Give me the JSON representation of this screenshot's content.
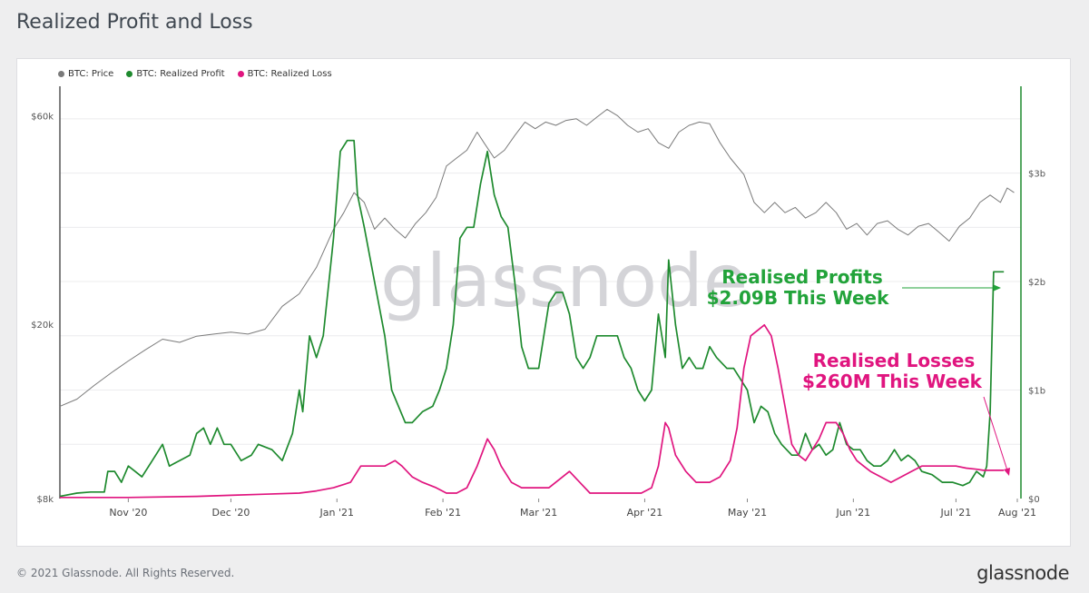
{
  "page": {
    "title": "Realized Profit and Loss",
    "footer": "© 2021 Glassnode. All Rights Reserved.",
    "logo": "glassnode",
    "watermark": "glassnode"
  },
  "colors": {
    "price": "#7a7a7a",
    "profit": "#1e8a2e",
    "loss": "#e0157f",
    "profit_annotation": "#22a33a",
    "loss_annotation": "#e0157f"
  },
  "legend": [
    {
      "label": "BTC: Price",
      "color": "#7a7a7a"
    },
    {
      "label": "BTC: Realized Profit",
      "color": "#1e8a2e"
    },
    {
      "label": "BTC: Realized Loss",
      "color": "#e0157f"
    }
  ],
  "annotations": {
    "profit": {
      "line1": "Realised Profits",
      "line2": "$2.09B This Week"
    },
    "loss": {
      "line1": "Realised Losses",
      "line2": "$260M This Week"
    }
  },
  "chart_data": {
    "type": "line",
    "title": "Realized Profit and Loss",
    "x_range_days": [
      0,
      281
    ],
    "x_ticks": [
      {
        "day": 20,
        "label": "Nov '20"
      },
      {
        "day": 50,
        "label": "Dec '20"
      },
      {
        "day": 81,
        "label": "Jan '21"
      },
      {
        "day": 112,
        "label": "Feb '21"
      },
      {
        "day": 140,
        "label": "Mar '21"
      },
      {
        "day": 171,
        "label": "Apr '21"
      },
      {
        "day": 201,
        "label": "May '21"
      },
      {
        "day": 232,
        "label": "Jun '21"
      },
      {
        "day": 262,
        "label": "Jul '21"
      },
      {
        "day": 293,
        "label": "Aug '21"
      }
    ],
    "y_left": {
      "scale": "log",
      "range": [
        8000,
        70000
      ],
      "ticks": [
        {
          "value": 8000,
          "label": "$8k"
        },
        {
          "value": 20000,
          "label": "$20k"
        },
        {
          "value": 60000,
          "label": "$60k"
        }
      ]
    },
    "y_right": {
      "scale": "linear",
      "range": [
        0,
        3.8
      ],
      "unit": "billion USD",
      "ticks": [
        {
          "value": 0,
          "label": "$0"
        },
        {
          "value": 1,
          "label": "$1b"
        },
        {
          "value": 2,
          "label": "$2b"
        },
        {
          "value": 3,
          "label": "$3b"
        }
      ]
    },
    "series": [
      {
        "name": "BTC: Price",
        "axis": "left",
        "points": [
          [
            0,
            13000
          ],
          [
            5,
            13500
          ],
          [
            10,
            14500
          ],
          [
            15,
            15500
          ],
          [
            20,
            16500
          ],
          [
            25,
            17500
          ],
          [
            30,
            18500
          ],
          [
            35,
            18200
          ],
          [
            40,
            18800
          ],
          [
            45,
            19000
          ],
          [
            50,
            19200
          ],
          [
            55,
            19000
          ],
          [
            60,
            19500
          ],
          [
            65,
            22000
          ],
          [
            70,
            23500
          ],
          [
            75,
            27000
          ],
          [
            80,
            33000
          ],
          [
            83,
            36000
          ],
          [
            86,
            40000
          ],
          [
            89,
            38000
          ],
          [
            92,
            33000
          ],
          [
            95,
            35000
          ],
          [
            98,
            33000
          ],
          [
            101,
            31500
          ],
          [
            104,
            34000
          ],
          [
            107,
            36000
          ],
          [
            110,
            39000
          ],
          [
            113,
            46000
          ],
          [
            116,
            48000
          ],
          [
            119,
            50000
          ],
          [
            122,
            55000
          ],
          [
            124,
            52000
          ],
          [
            127,
            48000
          ],
          [
            130,
            50000
          ],
          [
            133,
            54000
          ],
          [
            136,
            58000
          ],
          [
            139,
            56000
          ],
          [
            142,
            58000
          ],
          [
            145,
            57000
          ],
          [
            148,
            58500
          ],
          [
            151,
            59000
          ],
          [
            154,
            57000
          ],
          [
            157,
            59500
          ],
          [
            160,
            62000
          ],
          [
            163,
            60000
          ],
          [
            166,
            57000
          ],
          [
            169,
            55000
          ],
          [
            172,
            56000
          ],
          [
            175,
            52000
          ],
          [
            178,
            50500
          ],
          [
            181,
            55000
          ],
          [
            184,
            57000
          ],
          [
            187,
            58000
          ],
          [
            190,
            57500
          ],
          [
            193,
            52000
          ],
          [
            196,
            48000
          ],
          [
            200,
            44000
          ],
          [
            203,
            38000
          ],
          [
            206,
            36000
          ],
          [
            209,
            38000
          ],
          [
            212,
            36000
          ],
          [
            215,
            37000
          ],
          [
            218,
            35000
          ],
          [
            221,
            36000
          ],
          [
            224,
            38000
          ],
          [
            227,
            36000
          ],
          [
            230,
            33000
          ],
          [
            233,
            34000
          ],
          [
            236,
            32000
          ],
          [
            239,
            34000
          ],
          [
            242,
            34500
          ],
          [
            245,
            33000
          ],
          [
            248,
            32000
          ],
          [
            251,
            33500
          ],
          [
            254,
            34000
          ],
          [
            257,
            32500
          ],
          [
            260,
            31000
          ],
          [
            263,
            33500
          ],
          [
            266,
            35000
          ],
          [
            269,
            38000
          ],
          [
            272,
            39500
          ],
          [
            275,
            38000
          ],
          [
            277,
            41000
          ],
          [
            279,
            40000
          ]
        ]
      },
      {
        "name": "BTC: Realized Profit",
        "axis": "right",
        "points": [
          [
            0,
            0.02
          ],
          [
            5,
            0.05
          ],
          [
            9,
            0.06
          ],
          [
            13,
            0.06
          ],
          [
            14,
            0.25
          ],
          [
            16,
            0.25
          ],
          [
            18,
            0.15
          ],
          [
            20,
            0.3
          ],
          [
            22,
            0.25
          ],
          [
            24,
            0.2
          ],
          [
            27,
            0.35
          ],
          [
            30,
            0.5
          ],
          [
            32,
            0.3
          ],
          [
            35,
            0.35
          ],
          [
            38,
            0.4
          ],
          [
            40,
            0.6
          ],
          [
            42,
            0.65
          ],
          [
            44,
            0.5
          ],
          [
            46,
            0.65
          ],
          [
            48,
            0.5
          ],
          [
            50,
            0.5
          ],
          [
            53,
            0.35
          ],
          [
            56,
            0.4
          ],
          [
            58,
            0.5
          ],
          [
            62,
            0.45
          ],
          [
            65,
            0.35
          ],
          [
            68,
            0.6
          ],
          [
            70,
            1.0
          ],
          [
            71,
            0.8
          ],
          [
            73,
            1.5
          ],
          [
            75,
            1.3
          ],
          [
            77,
            1.5
          ],
          [
            80,
            2.4
          ],
          [
            82,
            3.2
          ],
          [
            84,
            3.3
          ],
          [
            86,
            3.3
          ],
          [
            87,
            2.8
          ],
          [
            89,
            2.5
          ],
          [
            92,
            2.0
          ],
          [
            95,
            1.5
          ],
          [
            97,
            1.0
          ],
          [
            99,
            0.85
          ],
          [
            101,
            0.7
          ],
          [
            103,
            0.7
          ],
          [
            106,
            0.8
          ],
          [
            109,
            0.85
          ],
          [
            111,
            1.0
          ],
          [
            113,
            1.2
          ],
          [
            115,
            1.6
          ],
          [
            117,
            2.4
          ],
          [
            119,
            2.5
          ],
          [
            121,
            2.5
          ],
          [
            123,
            2.9
          ],
          [
            125,
            3.2
          ],
          [
            127,
            2.8
          ],
          [
            129,
            2.6
          ],
          [
            131,
            2.5
          ],
          [
            133,
            2.0
          ],
          [
            135,
            1.4
          ],
          [
            137,
            1.2
          ],
          [
            140,
            1.2
          ],
          [
            143,
            1.8
          ],
          [
            145,
            1.9
          ],
          [
            147,
            1.9
          ],
          [
            149,
            1.7
          ],
          [
            151,
            1.3
          ],
          [
            153,
            1.2
          ],
          [
            155,
            1.3
          ],
          [
            157,
            1.5
          ],
          [
            160,
            1.5
          ],
          [
            163,
            1.5
          ],
          [
            165,
            1.3
          ],
          [
            167,
            1.2
          ],
          [
            169,
            1.0
          ],
          [
            171,
            0.9
          ],
          [
            173,
            1.0
          ],
          [
            175,
            1.7
          ],
          [
            177,
            1.3
          ],
          [
            178,
            2.2
          ],
          [
            180,
            1.6
          ],
          [
            182,
            1.2
          ],
          [
            184,
            1.3
          ],
          [
            186,
            1.2
          ],
          [
            188,
            1.2
          ],
          [
            190,
            1.4
          ],
          [
            192,
            1.3
          ],
          [
            195,
            1.2
          ],
          [
            197,
            1.2
          ],
          [
            199,
            1.1
          ],
          [
            201,
            1.0
          ],
          [
            203,
            0.7
          ],
          [
            205,
            0.85
          ],
          [
            207,
            0.8
          ],
          [
            209,
            0.6
          ],
          [
            211,
            0.5
          ],
          [
            214,
            0.4
          ],
          [
            216,
            0.4
          ],
          [
            218,
            0.6
          ],
          [
            220,
            0.45
          ],
          [
            222,
            0.5
          ],
          [
            224,
            0.4
          ],
          [
            226,
            0.45
          ],
          [
            228,
            0.7
          ],
          [
            230,
            0.5
          ],
          [
            232,
            0.45
          ],
          [
            234,
            0.45
          ],
          [
            236,
            0.35
          ],
          [
            238,
            0.3
          ],
          [
            240,
            0.3
          ],
          [
            242,
            0.35
          ],
          [
            244,
            0.45
          ],
          [
            246,
            0.35
          ],
          [
            248,
            0.4
          ],
          [
            250,
            0.35
          ],
          [
            252,
            0.25
          ],
          [
            255,
            0.22
          ],
          [
            258,
            0.15
          ],
          [
            261,
            0.15
          ],
          [
            264,
            0.12
          ],
          [
            266,
            0.15
          ],
          [
            268,
            0.25
          ],
          [
            270,
            0.2
          ],
          [
            271,
            0.3
          ],
          [
            272,
            0.8
          ],
          [
            273,
            2.09
          ],
          [
            276,
            2.09
          ]
        ]
      },
      {
        "name": "BTC: Realized Loss",
        "axis": "right",
        "points": [
          [
            0,
            0.01
          ],
          [
            20,
            0.01
          ],
          [
            40,
            0.02
          ],
          [
            50,
            0.03
          ],
          [
            60,
            0.04
          ],
          [
            70,
            0.05
          ],
          [
            75,
            0.07
          ],
          [
            80,
            0.1
          ],
          [
            85,
            0.15
          ],
          [
            88,
            0.3
          ],
          [
            92,
            0.3
          ],
          [
            95,
            0.3
          ],
          [
            98,
            0.35
          ],
          [
            100,
            0.3
          ],
          [
            103,
            0.2
          ],
          [
            106,
            0.15
          ],
          [
            110,
            0.1
          ],
          [
            113,
            0.05
          ],
          [
            116,
            0.05
          ],
          [
            119,
            0.1
          ],
          [
            122,
            0.3
          ],
          [
            125,
            0.55
          ],
          [
            127,
            0.45
          ],
          [
            129,
            0.3
          ],
          [
            132,
            0.15
          ],
          [
            135,
            0.1
          ],
          [
            140,
            0.1
          ],
          [
            143,
            0.1
          ],
          [
            147,
            0.2
          ],
          [
            149,
            0.25
          ],
          [
            152,
            0.15
          ],
          [
            155,
            0.05
          ],
          [
            160,
            0.05
          ],
          [
            165,
            0.05
          ],
          [
            170,
            0.05
          ],
          [
            173,
            0.1
          ],
          [
            175,
            0.3
          ],
          [
            177,
            0.7
          ],
          [
            178,
            0.65
          ],
          [
            180,
            0.4
          ],
          [
            183,
            0.25
          ],
          [
            186,
            0.15
          ],
          [
            190,
            0.15
          ],
          [
            193,
            0.2
          ],
          [
            196,
            0.35
          ],
          [
            198,
            0.65
          ],
          [
            200,
            1.2
          ],
          [
            202,
            1.5
          ],
          [
            204,
            1.55
          ],
          [
            206,
            1.6
          ],
          [
            208,
            1.5
          ],
          [
            210,
            1.2
          ],
          [
            212,
            0.85
          ],
          [
            214,
            0.5
          ],
          [
            216,
            0.4
          ],
          [
            218,
            0.35
          ],
          [
            220,
            0.45
          ],
          [
            222,
            0.55
          ],
          [
            224,
            0.7
          ],
          [
            227,
            0.7
          ],
          [
            229,
            0.6
          ],
          [
            231,
            0.45
          ],
          [
            233,
            0.35
          ],
          [
            235,
            0.3
          ],
          [
            237,
            0.25
          ],
          [
            240,
            0.2
          ],
          [
            243,
            0.15
          ],
          [
            246,
            0.2
          ],
          [
            249,
            0.25
          ],
          [
            252,
            0.3
          ],
          [
            255,
            0.3
          ],
          [
            258,
            0.3
          ],
          [
            262,
            0.3
          ],
          [
            265,
            0.28
          ],
          [
            268,
            0.27
          ],
          [
            270,
            0.26
          ],
          [
            273,
            0.26
          ],
          [
            276,
            0.26
          ]
        ]
      }
    ]
  }
}
